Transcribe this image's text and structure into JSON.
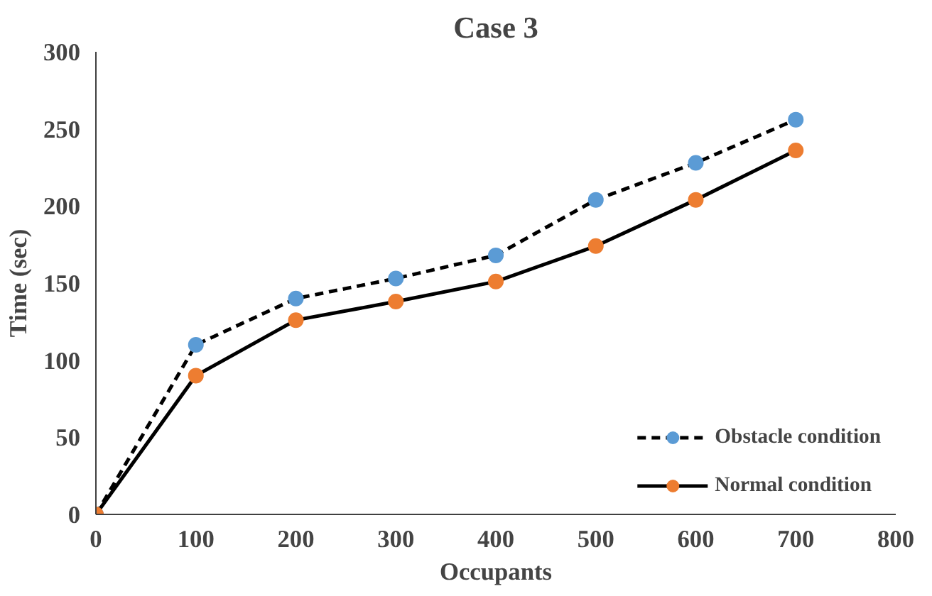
{
  "chart_data": {
    "type": "line",
    "title": "Case 3",
    "xlabel": "Occupants",
    "ylabel": "Time (sec)",
    "x": [
      0,
      100,
      200,
      300,
      400,
      500,
      600,
      700
    ],
    "series": [
      {
        "name": "Obstacle condition",
        "color": "#5b9bd5",
        "line_style": "dashed",
        "values": [
          0,
          110,
          140,
          153,
          168,
          204,
          228,
          256
        ]
      },
      {
        "name": "Normal condition",
        "color": "#ed7d31",
        "line_style": "solid",
        "values": [
          0,
          90,
          126,
          138,
          151,
          174,
          204,
          236
        ]
      }
    ],
    "xlim": [
      0,
      800
    ],
    "xticks": [
      0,
      100,
      200,
      300,
      400,
      500,
      600,
      700,
      800
    ],
    "ylim": [
      0,
      300
    ],
    "yticks": [
      0,
      50,
      100,
      150,
      200,
      250,
      300
    ],
    "grid": false,
    "legend": "bottom right",
    "marker": "circle"
  }
}
